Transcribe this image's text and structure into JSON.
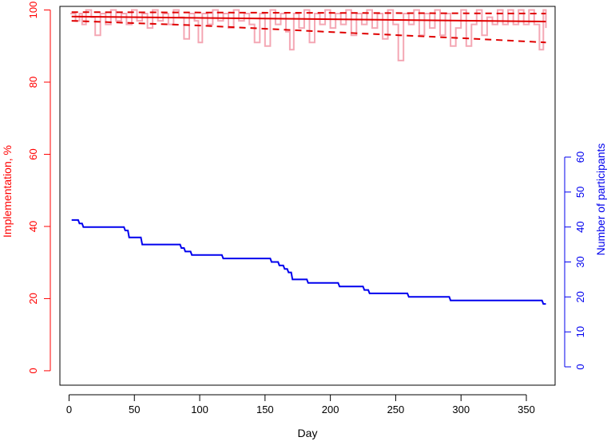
{
  "chart_data": {
    "type": "line",
    "xlabel": "Day",
    "ylabel_left": "Implementation, %",
    "ylabel_right": "Number of participants",
    "x_ticks": [
      "0",
      "50",
      "100",
      "150",
      "200",
      "250",
      "300",
      "350"
    ],
    "y_left_ticks": [
      "0",
      "20",
      "40",
      "60",
      "80",
      "100"
    ],
    "y_right_ticks": [
      "0",
      "10",
      "20",
      "30",
      "40",
      "50",
      "60"
    ],
    "xlim": [
      -7,
      372
    ],
    "ylim_left": [
      -4,
      101
    ],
    "ylim_right": [
      0,
      63.8
    ],
    "grid": false,
    "colors": {
      "left_axis": "#ff0000",
      "right_axis": "#0000ee",
      "raw_series": "#f4a7b4",
      "fit": "#e00000",
      "participants": "#0000ee",
      "frame": "#000000"
    },
    "series": [
      {
        "axis": "left",
        "style": "raw",
        "points": [
          [
            1,
            99
          ],
          [
            5,
            97
          ],
          [
            8,
            99
          ],
          [
            10,
            96
          ],
          [
            13,
            100
          ],
          [
            17,
            98
          ],
          [
            20,
            93
          ],
          [
            24,
            99
          ],
          [
            28,
            96
          ],
          [
            32,
            100
          ],
          [
            36,
            97
          ],
          [
            40,
            99
          ],
          [
            44,
            96
          ],
          [
            48,
            100
          ],
          [
            52,
            97
          ],
          [
            56,
            99
          ],
          [
            60,
            95
          ],
          [
            64,
            100
          ],
          [
            68,
            97
          ],
          [
            72,
            99
          ],
          [
            76,
            96
          ],
          [
            80,
            100
          ],
          [
            84,
            98
          ],
          [
            88,
            92
          ],
          [
            92,
            99
          ],
          [
            96,
            97
          ],
          [
            99,
            91
          ],
          [
            102,
            99
          ],
          [
            106,
            96
          ],
          [
            110,
            100
          ],
          [
            114,
            97
          ],
          [
            118,
            99
          ],
          [
            122,
            95
          ],
          [
            126,
            100
          ],
          [
            130,
            97
          ],
          [
            134,
            99
          ],
          [
            138,
            96
          ],
          [
            142,
            91
          ],
          [
            146,
            99
          ],
          [
            150,
            90
          ],
          [
            154,
            100
          ],
          [
            158,
            96
          ],
          [
            162,
            99
          ],
          [
            166,
            94
          ],
          [
            169,
            89
          ],
          [
            172,
            99
          ],
          [
            176,
            95
          ],
          [
            180,
            100
          ],
          [
            184,
            91
          ],
          [
            188,
            99
          ],
          [
            192,
            96
          ],
          [
            196,
            100
          ],
          [
            200,
            95
          ],
          [
            204,
            99
          ],
          [
            208,
            96
          ],
          [
            212,
            100
          ],
          [
            216,
            93
          ],
          [
            220,
            99
          ],
          [
            224,
            96
          ],
          [
            228,
            100
          ],
          [
            232,
            95
          ],
          [
            236,
            99
          ],
          [
            240,
            92
          ],
          [
            244,
            100
          ],
          [
            248,
            96
          ],
          [
            252,
            86
          ],
          [
            256,
            99
          ],
          [
            260,
            96
          ],
          [
            264,
            100
          ],
          [
            268,
            93
          ],
          [
            272,
            99
          ],
          [
            276,
            95
          ],
          [
            280,
            100
          ],
          [
            284,
            93
          ],
          [
            288,
            99
          ],
          [
            292,
            90
          ],
          [
            296,
            95
          ],
          [
            300,
            100
          ],
          [
            304,
            90
          ],
          [
            308,
            96
          ],
          [
            312,
            100
          ],
          [
            316,
            93
          ],
          [
            320,
            98
          ],
          [
            324,
            96
          ],
          [
            328,
            100
          ],
          [
            332,
            96
          ],
          [
            336,
            100
          ],
          [
            340,
            96
          ],
          [
            344,
            100
          ],
          [
            348,
            96
          ],
          [
            352,
            100
          ],
          [
            356,
            96
          ],
          [
            360,
            89
          ],
          [
            363,
            100
          ],
          [
            365,
            95
          ]
        ]
      },
      {
        "axis": "left",
        "style": "fit",
        "points": [
          [
            2,
            98.2
          ],
          [
            365,
            96.8
          ]
        ]
      },
      {
        "axis": "left",
        "style": "ci",
        "points": [
          [
            2,
            99.4
          ],
          [
            365,
            99.0
          ]
        ]
      },
      {
        "axis": "left",
        "style": "ci",
        "points": [
          [
            2,
            97.0
          ],
          [
            100,
            95.7
          ],
          [
            200,
            93.9
          ],
          [
            300,
            92.2
          ],
          [
            365,
            91.0
          ]
        ]
      },
      {
        "axis": "right",
        "style": "participants",
        "points": [
          [
            2,
            42
          ],
          [
            7,
            42
          ],
          [
            8,
            41
          ],
          [
            10,
            41
          ],
          [
            11,
            40
          ],
          [
            42,
            40
          ],
          [
            43,
            39
          ],
          [
            45,
            39
          ],
          [
            46,
            37
          ],
          [
            55,
            37
          ],
          [
            56,
            35
          ],
          [
            85,
            35
          ],
          [
            86,
            34
          ],
          [
            88,
            34
          ],
          [
            89,
            33
          ],
          [
            93,
            33
          ],
          [
            94,
            32
          ],
          [
            117,
            32
          ],
          [
            118,
            31
          ],
          [
            154,
            31
          ],
          [
            155,
            30
          ],
          [
            160,
            30
          ],
          [
            161,
            29
          ],
          [
            164,
            29
          ],
          [
            165,
            28
          ],
          [
            167,
            28
          ],
          [
            168,
            27
          ],
          [
            170,
            27
          ],
          [
            171,
            25
          ],
          [
            182,
            25
          ],
          [
            183,
            24
          ],
          [
            206,
            24
          ],
          [
            207,
            23
          ],
          [
            225,
            23
          ],
          [
            226,
            22
          ],
          [
            229,
            22
          ],
          [
            230,
            21
          ],
          [
            259,
            21
          ],
          [
            260,
            20
          ],
          [
            291,
            20
          ],
          [
            292,
            19
          ],
          [
            362,
            19
          ],
          [
            363,
            18
          ],
          [
            365,
            18
          ]
        ]
      }
    ]
  }
}
